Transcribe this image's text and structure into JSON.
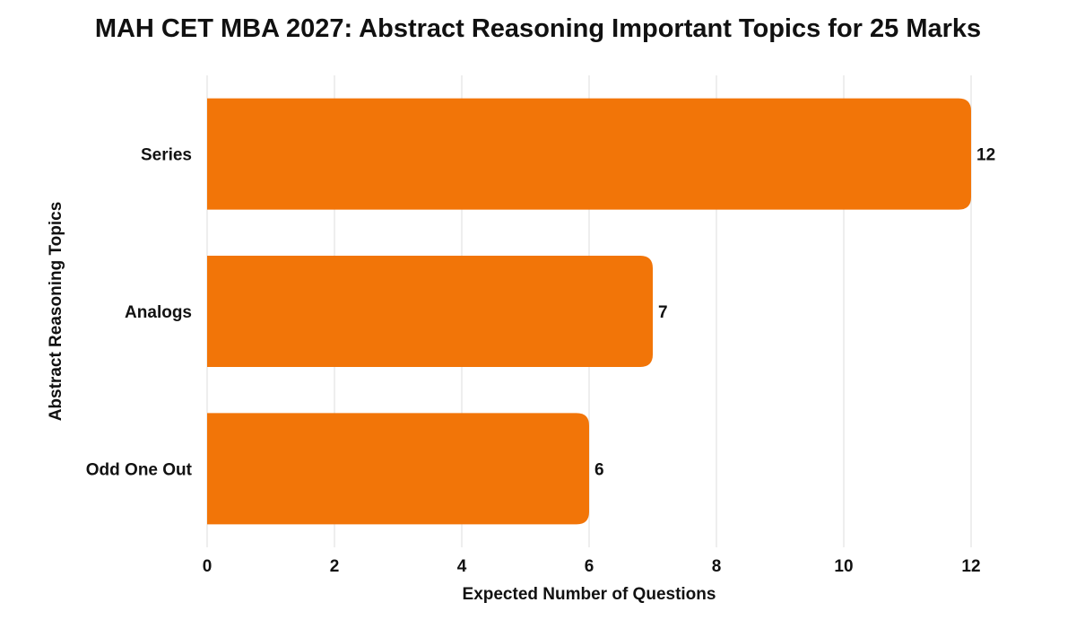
{
  "chart_data": {
    "type": "bar",
    "orientation": "horizontal",
    "title": "MAH CET MBA 2027: Abstract Reasoning Important Topics for 25 Marks",
    "xlabel": "Expected Number of Questions",
    "ylabel": "Abstract Reasoning Topics",
    "categories": [
      "Series",
      "Analogs",
      "Odd One Out"
    ],
    "values": [
      12,
      7,
      6
    ],
    "xlim": [
      0,
      12
    ],
    "xticks": [
      "0",
      "2",
      "4",
      "6",
      "8",
      "10",
      "12"
    ],
    "grid": true,
    "data_labels": true,
    "bar_color": "#F27508",
    "grid_color": "#DDDDDD"
  }
}
